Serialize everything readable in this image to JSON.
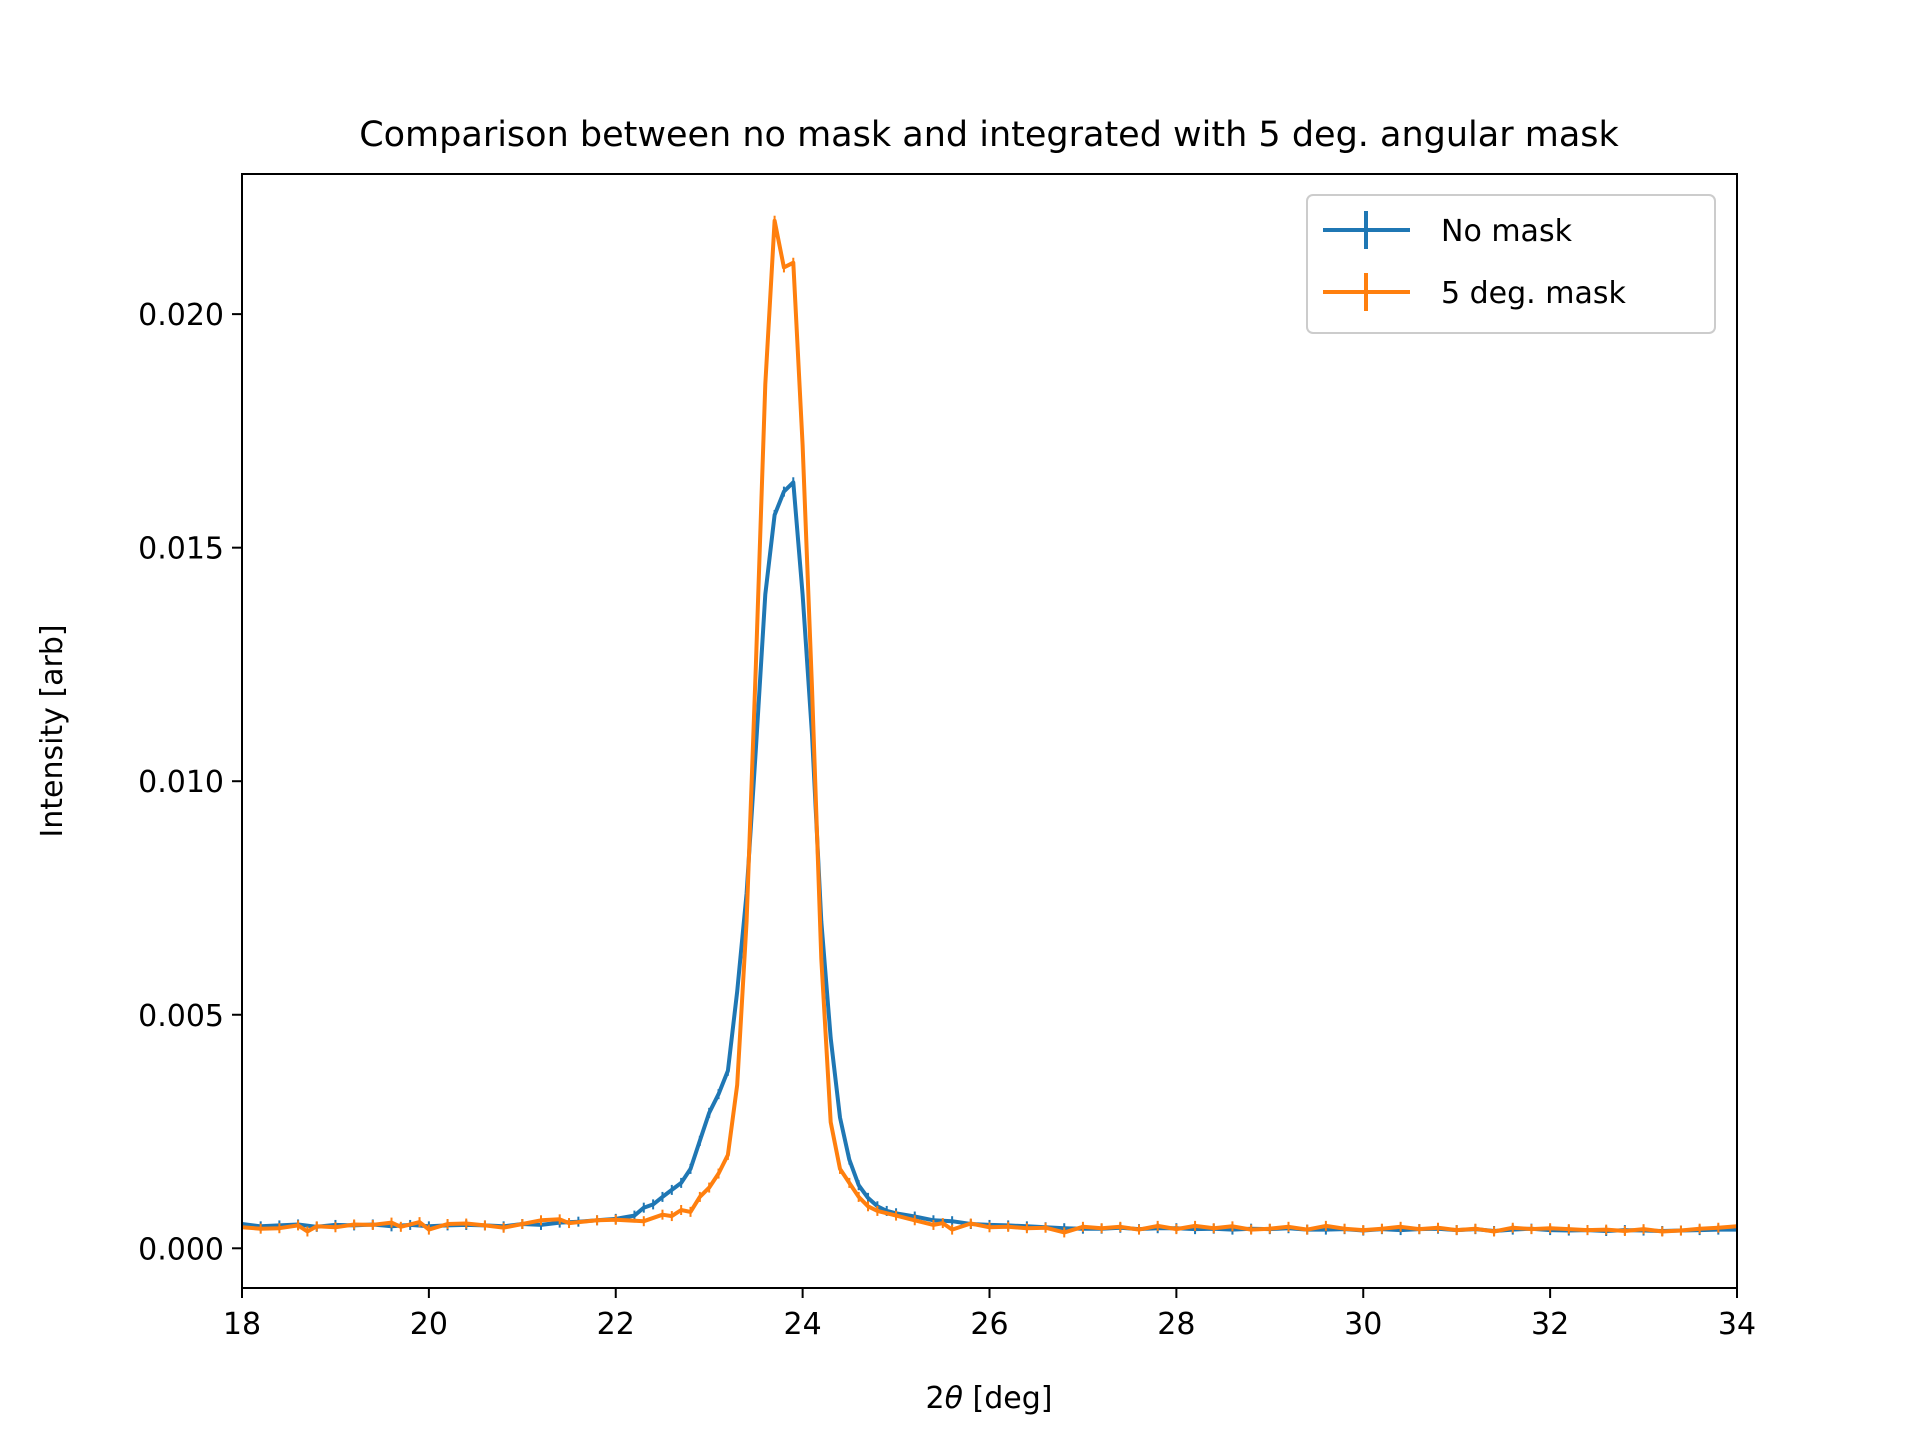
{
  "chart_data": {
    "type": "line",
    "title": "Comparison between no mask and integrated with 5 deg. angular mask",
    "xlabel_prefix": "2",
    "xlabel_symbol": "θ",
    "xlabel_suffix": " [deg]",
    "ylabel": "Intensity [arb]",
    "xlim": [
      18,
      34
    ],
    "ylim": [
      -0.00085,
      0.023
    ],
    "xticks": [
      18,
      20,
      22,
      24,
      26,
      28,
      30,
      32,
      34
    ],
    "xtick_labels": [
      "18",
      "20",
      "22",
      "24",
      "26",
      "28",
      "30",
      "32",
      "34"
    ],
    "yticks": [
      0.0,
      0.005,
      0.01,
      0.015,
      0.02
    ],
    "ytick_labels": [
      "0.000",
      "0.005",
      "0.010",
      "0.015",
      "0.020"
    ],
    "grid": false,
    "legend_position": "top-right",
    "errorbars": true,
    "series": [
      {
        "name": "No mask",
        "color": "#1f77b4",
        "points": [
          [
            18.0,
            0.00052
          ],
          [
            18.2,
            0.00047
          ],
          [
            18.4,
            0.00049
          ],
          [
            18.6,
            0.00051
          ],
          [
            18.8,
            0.00046
          ],
          [
            19.0,
            0.0005
          ],
          [
            19.2,
            0.00049
          ],
          [
            19.4,
            0.00051
          ],
          [
            19.6,
            0.00047
          ],
          [
            19.8,
            0.0005
          ],
          [
            20.0,
            0.00047
          ],
          [
            20.2,
            0.00049
          ],
          [
            20.4,
            0.0005
          ],
          [
            20.6,
            0.00049
          ],
          [
            20.8,
            0.00047
          ],
          [
            21.0,
            0.00052
          ],
          [
            21.2,
            0.0005
          ],
          [
            21.4,
            0.00055
          ],
          [
            21.6,
            0.00057
          ],
          [
            21.8,
            0.0006
          ],
          [
            22.0,
            0.00063
          ],
          [
            22.2,
            0.0007
          ],
          [
            22.3,
            0.00087
          ],
          [
            22.4,
            0.00094
          ],
          [
            22.5,
            0.0011
          ],
          [
            22.6,
            0.00125
          ],
          [
            22.7,
            0.0014
          ],
          [
            22.8,
            0.0017
          ],
          [
            22.9,
            0.0023
          ],
          [
            23.0,
            0.0029
          ],
          [
            23.1,
            0.0033
          ],
          [
            23.2,
            0.0038
          ],
          [
            23.3,
            0.0055
          ],
          [
            23.4,
            0.0076
          ],
          [
            23.5,
            0.0107
          ],
          [
            23.6,
            0.014
          ],
          [
            23.7,
            0.0157
          ],
          [
            23.8,
            0.0162
          ],
          [
            23.9,
            0.0164
          ],
          [
            24.0,
            0.014
          ],
          [
            24.1,
            0.011
          ],
          [
            24.2,
            0.007
          ],
          [
            24.3,
            0.0045
          ],
          [
            24.4,
            0.0028
          ],
          [
            24.5,
            0.0019
          ],
          [
            24.6,
            0.00135
          ],
          [
            24.7,
            0.00108
          ],
          [
            24.8,
            0.0009
          ],
          [
            24.9,
            0.0008
          ],
          [
            25.0,
            0.00075
          ],
          [
            25.2,
            0.00068
          ],
          [
            25.4,
            0.0006
          ],
          [
            25.6,
            0.00058
          ],
          [
            25.8,
            0.00052
          ],
          [
            26.0,
            0.0005
          ],
          [
            26.2,
            0.00049
          ],
          [
            26.4,
            0.00047
          ],
          [
            26.6,
            0.00045
          ],
          [
            26.8,
            0.00043
          ],
          [
            27.0,
            0.00042
          ],
          [
            27.2,
            0.00042
          ],
          [
            27.4,
            0.00044
          ],
          [
            27.6,
            0.00041
          ],
          [
            27.8,
            0.00043
          ],
          [
            28.0,
            0.00043
          ],
          [
            28.2,
            0.00041
          ],
          [
            28.4,
            0.00042
          ],
          [
            28.6,
            0.0004
          ],
          [
            28.8,
            0.00042
          ],
          [
            29.0,
            0.00041
          ],
          [
            29.2,
            0.00043
          ],
          [
            29.4,
            0.0004
          ],
          [
            29.6,
            0.0004
          ],
          [
            29.8,
            0.00041
          ],
          [
            30.0,
            0.00038
          ],
          [
            30.2,
            0.00041
          ],
          [
            30.4,
            0.00039
          ],
          [
            30.6,
            0.00041
          ],
          [
            30.8,
            0.00042
          ],
          [
            31.0,
            0.00039
          ],
          [
            31.2,
            0.00041
          ],
          [
            31.4,
            0.00037
          ],
          [
            31.6,
            0.0004
          ],
          [
            31.8,
            0.00042
          ],
          [
            32.0,
            0.00039
          ],
          [
            32.2,
            0.00038
          ],
          [
            32.4,
            0.00039
          ],
          [
            32.6,
            0.00037
          ],
          [
            32.8,
            0.00039
          ],
          [
            33.0,
            0.00038
          ],
          [
            33.2,
            0.00037
          ],
          [
            33.4,
            0.00038
          ],
          [
            33.6,
            0.00039
          ],
          [
            33.8,
            0.0004
          ],
          [
            34.0,
            0.0004
          ]
        ]
      },
      {
        "name": "5 deg. mask",
        "color": "#ff7f0e",
        "points": [
          [
            18.0,
            0.00045
          ],
          [
            18.2,
            0.00042
          ],
          [
            18.4,
            0.00043
          ],
          [
            18.6,
            0.00049
          ],
          [
            18.7,
            0.00036
          ],
          [
            18.8,
            0.00047
          ],
          [
            19.0,
            0.00045
          ],
          [
            19.2,
            0.00051
          ],
          [
            19.4,
            0.0005
          ],
          [
            19.6,
            0.00055
          ],
          [
            19.7,
            0.00046
          ],
          [
            19.9,
            0.00056
          ],
          [
            20.0,
            0.0004
          ],
          [
            20.2,
            0.00052
          ],
          [
            20.4,
            0.00053
          ],
          [
            20.6,
            0.00049
          ],
          [
            20.8,
            0.00044
          ],
          [
            21.0,
            0.00052
          ],
          [
            21.2,
            0.0006
          ],
          [
            21.4,
            0.00062
          ],
          [
            21.5,
            0.00054
          ],
          [
            21.8,
            0.0006
          ],
          [
            22.0,
            0.00061
          ],
          [
            22.3,
            0.00058
          ],
          [
            22.5,
            0.00072
          ],
          [
            22.6,
            0.00069
          ],
          [
            22.7,
            0.00082
          ],
          [
            22.8,
            0.00078
          ],
          [
            22.9,
            0.0011
          ],
          [
            23.0,
            0.0013
          ],
          [
            23.1,
            0.0016
          ],
          [
            23.2,
            0.002
          ],
          [
            23.3,
            0.0035
          ],
          [
            23.4,
            0.007
          ],
          [
            23.5,
            0.0125
          ],
          [
            23.6,
            0.0185
          ],
          [
            23.7,
            0.022
          ],
          [
            23.8,
            0.021
          ],
          [
            23.9,
            0.0211
          ],
          [
            24.0,
            0.0172
          ],
          [
            24.1,
            0.012
          ],
          [
            24.2,
            0.0062
          ],
          [
            24.3,
            0.0027
          ],
          [
            24.4,
            0.0017
          ],
          [
            24.5,
            0.0014
          ],
          [
            24.6,
            0.0011
          ],
          [
            24.7,
            0.0009
          ],
          [
            24.8,
            0.0008
          ],
          [
            25.0,
            0.0007
          ],
          [
            25.2,
            0.0006
          ],
          [
            25.4,
            0.0005
          ],
          [
            25.5,
            0.00054
          ],
          [
            25.6,
            0.0004
          ],
          [
            25.8,
            0.00053
          ],
          [
            26.0,
            0.00045
          ],
          [
            26.2,
            0.00046
          ],
          [
            26.4,
            0.00043
          ],
          [
            26.6,
            0.00044
          ],
          [
            26.8,
            0.00034
          ],
          [
            27.0,
            0.00046
          ],
          [
            27.2,
            0.00043
          ],
          [
            27.4,
            0.00046
          ],
          [
            27.6,
            0.0004
          ],
          [
            27.8,
            0.00048
          ],
          [
            28.0,
            0.00041
          ],
          [
            28.2,
            0.00048
          ],
          [
            28.4,
            0.00043
          ],
          [
            28.6,
            0.00047
          ],
          [
            28.8,
            0.0004
          ],
          [
            29.0,
            0.00042
          ],
          [
            29.2,
            0.00046
          ],
          [
            29.4,
            0.0004
          ],
          [
            29.6,
            0.00048
          ],
          [
            29.8,
            0.00042
          ],
          [
            30.0,
            0.00039
          ],
          [
            30.2,
            0.00042
          ],
          [
            30.4,
            0.00046
          ],
          [
            30.6,
            0.00041
          ],
          [
            30.8,
            0.00044
          ],
          [
            31.0,
            0.00039
          ],
          [
            31.2,
            0.00042
          ],
          [
            31.4,
            0.00036
          ],
          [
            31.6,
            0.00044
          ],
          [
            31.8,
            0.00041
          ],
          [
            32.0,
            0.00043
          ],
          [
            32.2,
            0.00041
          ],
          [
            32.4,
            0.00039
          ],
          [
            32.6,
            0.0004
          ],
          [
            32.8,
            0.00037
          ],
          [
            33.0,
            0.00041
          ],
          [
            33.2,
            0.00036
          ],
          [
            33.4,
            0.00038
          ],
          [
            33.6,
            0.00042
          ],
          [
            33.8,
            0.00044
          ],
          [
            34.0,
            0.00047
          ]
        ]
      }
    ]
  }
}
